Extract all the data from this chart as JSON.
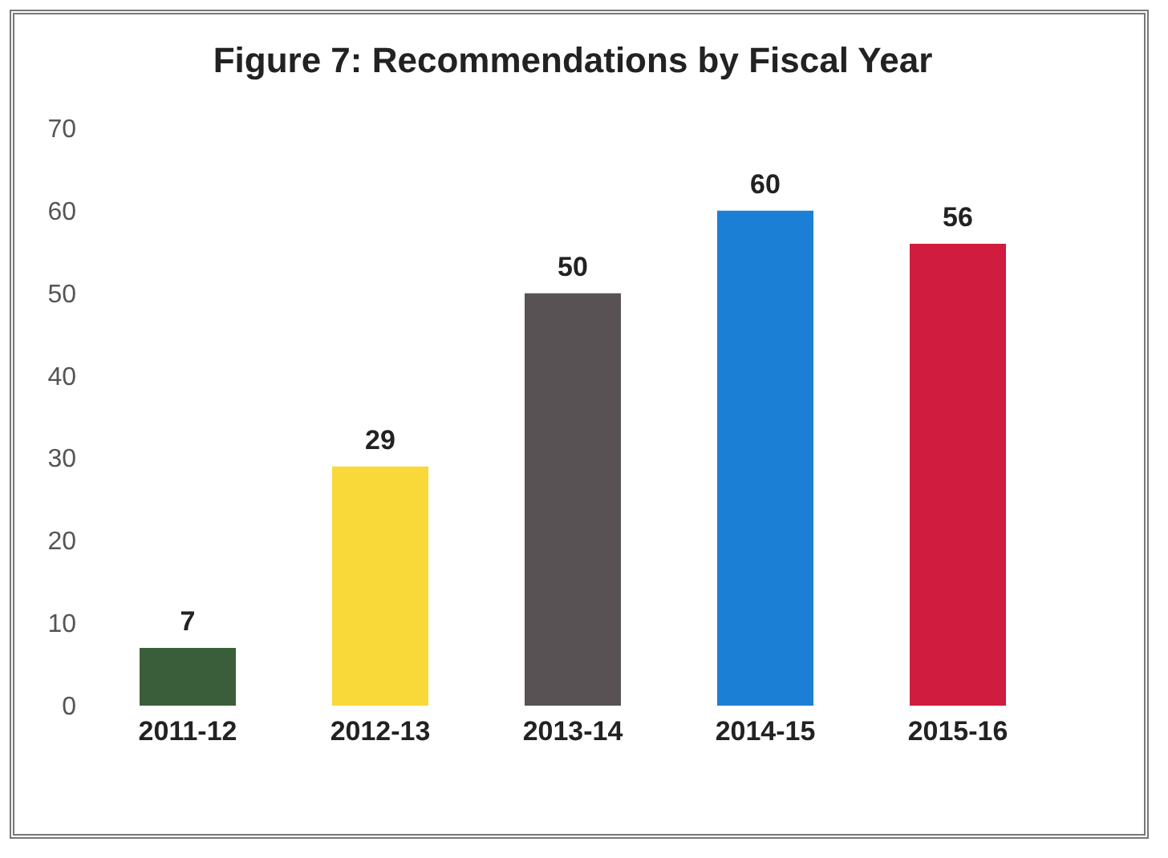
{
  "chart_data": {
    "type": "bar",
    "title": "Figure 7: Recommendations by Fiscal Year",
    "categories": [
      "2011-12",
      "2012-13",
      "2013-14",
      "2014-15",
      "2015-16"
    ],
    "values": [
      7,
      29,
      50,
      60,
      56
    ],
    "colors": [
      "#3b5e3a",
      "#f9d83a",
      "#585254",
      "#1c7fd6",
      "#cf1c3f"
    ],
    "ylim": [
      0,
      70
    ],
    "yticks": [
      0,
      10,
      20,
      30,
      40,
      50,
      60,
      70
    ],
    "data_labels": true
  }
}
